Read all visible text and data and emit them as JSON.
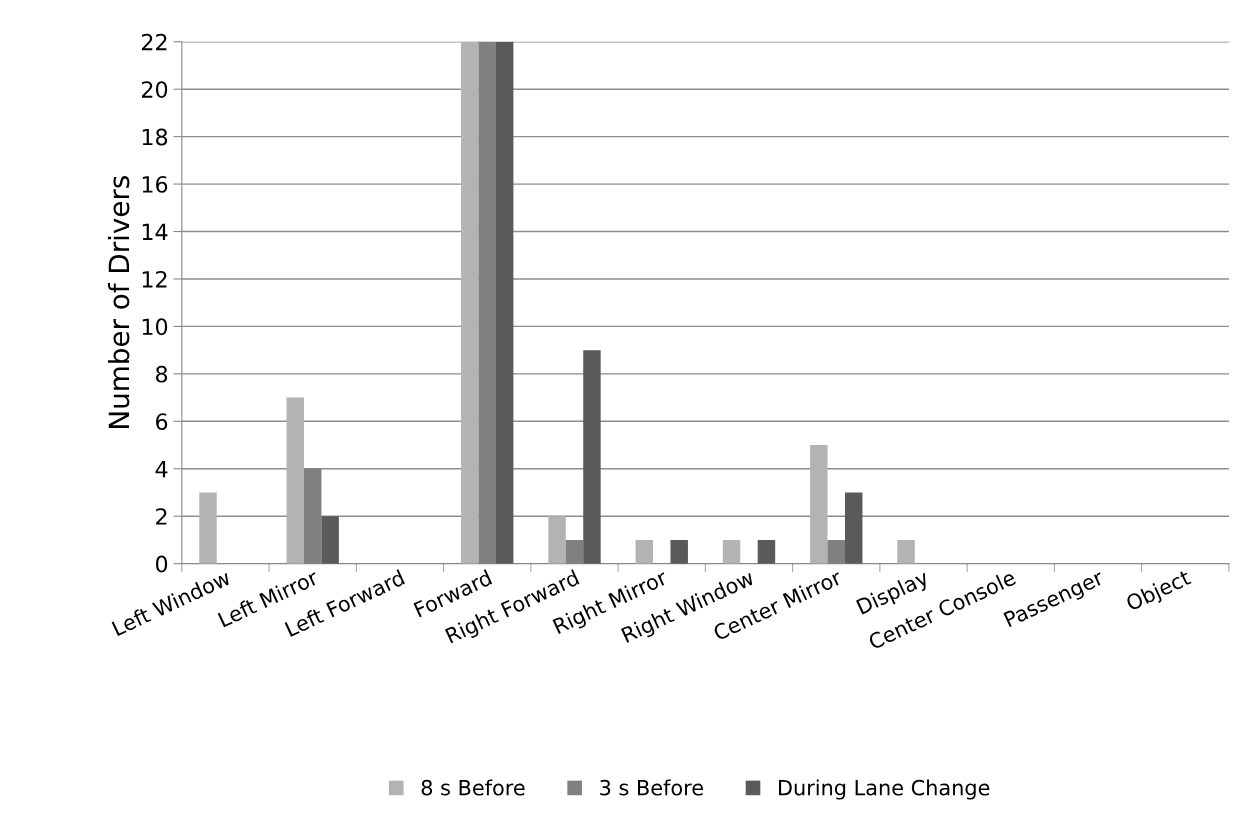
{
  "chart_data": {
    "type": "bar",
    "ylabel": "Number of Drivers",
    "categories": [
      "Left Window",
      "Left Mirror",
      "Left Forward",
      "Forward",
      "Right Forward",
      "Right Mirror",
      "Right Window",
      "Center Mirror",
      "Display",
      "Center Console",
      "Passenger",
      "Object"
    ],
    "series": [
      {
        "name": "8 s Before",
        "color": "#b3b3b3",
        "values": [
          3,
          7,
          0,
          22,
          2,
          1,
          1,
          5,
          1,
          0,
          0,
          0
        ]
      },
      {
        "name": "3 s Before",
        "color": "#808080",
        "values": [
          0,
          4,
          0,
          22,
          1,
          0,
          0,
          1,
          0,
          0,
          0,
          0
        ]
      },
      {
        "name": "During Lane Change",
        "color": "#5a5a5a",
        "values": [
          0,
          2,
          0,
          22,
          9,
          1,
          1,
          3,
          0,
          0,
          0,
          0
        ]
      }
    ],
    "ylim": [
      0,
      22
    ],
    "yticks": [
      0,
      2,
      4,
      6,
      8,
      10,
      12,
      14,
      16,
      18,
      20,
      22
    ],
    "grid": "y",
    "legend": "bottom"
  }
}
